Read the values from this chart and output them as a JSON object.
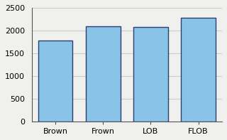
{
  "categories": [
    "Brown",
    "Frown",
    "LOB",
    "FLOB"
  ],
  "values": [
    1780,
    2100,
    2080,
    2280
  ],
  "bar_color": "#89c4e8",
  "bar_edge_color": "#2c4070",
  "bar_edge_width": 1.0,
  "ylim": [
    0,
    2500
  ],
  "yticks": [
    0,
    500,
    1000,
    1500,
    2000,
    2500
  ],
  "grid_color": "#cccccc",
  "background_color": "#f0f0ee",
  "plot_bg_color": "#f0f0ee",
  "tick_fontsize": 8,
  "bar_width": 0.72,
  "spine_color": "#555555"
}
